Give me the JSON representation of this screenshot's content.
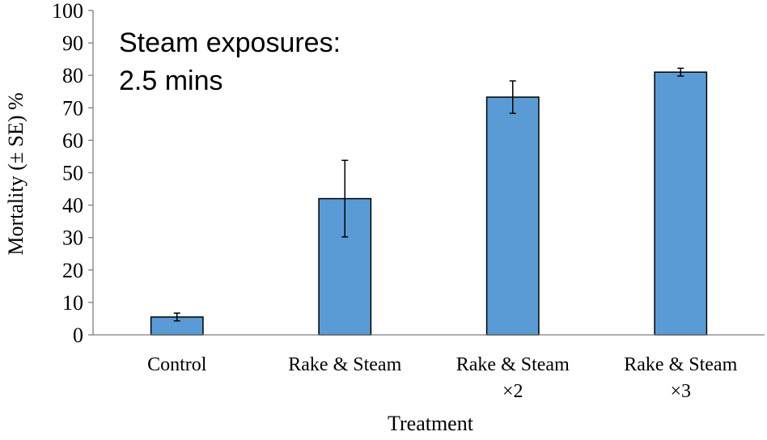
{
  "chart_data": {
    "type": "bar",
    "title": "",
    "annotation": [
      "Steam exposures:",
      "2.5 mins"
    ],
    "xlabel": "Treatment",
    "ylabel": "Mortality (± SE) %",
    "categories": [
      [
        "Control"
      ],
      [
        "Rake & Steam"
      ],
      [
        "Rake & Steam",
        "×2"
      ],
      [
        "Rake & Steam",
        "×3"
      ]
    ],
    "series": [
      {
        "values": [
          5.5,
          42,
          73.3,
          81
        ],
        "errors": [
          1.2,
          11.8,
          5,
          1.2
        ]
      }
    ],
    "ylim": [
      0,
      100
    ],
    "yticks": [
      0,
      10,
      20,
      30,
      40,
      50,
      60,
      70,
      80,
      90,
      100
    ],
    "grid": false,
    "bar_color": "#5b9bd5",
    "bar_edge_color": "#000000"
  }
}
